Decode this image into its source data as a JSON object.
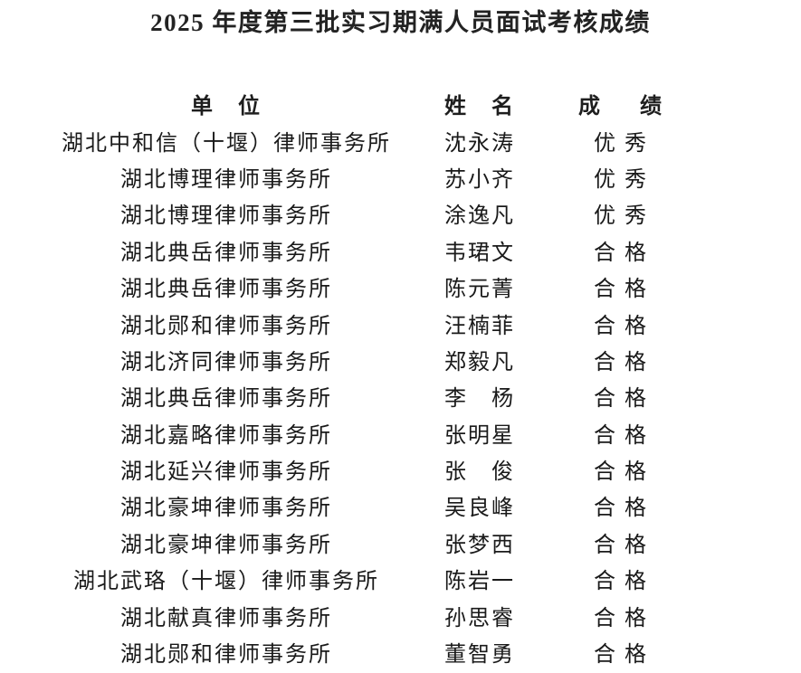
{
  "title": "2025 年度第三批实习期满人员面试考核成绩",
  "table": {
    "headers": {
      "unit": "单　位",
      "name": "姓　名",
      "score": "成　绩"
    },
    "rows": [
      {
        "unit": "湖北中和信（十堰）律师事务所",
        "name": "沈永涛",
        "score": "优秀"
      },
      {
        "unit": "湖北博理律师事务所",
        "name": "苏小齐",
        "score": "优秀"
      },
      {
        "unit": "湖北博理律师事务所",
        "name": "涂逸凡",
        "score": "优秀"
      },
      {
        "unit": "湖北典岳律师事务所",
        "name": "韦珺文",
        "score": "合格"
      },
      {
        "unit": "湖北典岳律师事务所",
        "name": "陈元菁",
        "score": "合格"
      },
      {
        "unit": "湖北郧和律师事务所",
        "name": "汪楠菲",
        "score": "合格"
      },
      {
        "unit": "湖北济同律师事务所",
        "name": "郑毅凡",
        "score": "合格"
      },
      {
        "unit": "湖北典岳律师事务所",
        "name": "李　杨",
        "score": "合格"
      },
      {
        "unit": "湖北嘉略律师事务所",
        "name": "张明星",
        "score": "合格"
      },
      {
        "unit": "湖北延兴律师事务所",
        "name": "张　俊",
        "score": "合格"
      },
      {
        "unit": "湖北豪坤律师事务所",
        "name": "吴良峰",
        "score": "合格"
      },
      {
        "unit": "湖北豪坤律师事务所",
        "name": "张梦西",
        "score": "合格"
      },
      {
        "unit": "湖北武珞（十堰）律师事务所",
        "name": "陈岩一",
        "score": "合格"
      },
      {
        "unit": "湖北献真律师事务所",
        "name": "孙思睿",
        "score": "合格"
      },
      {
        "unit": "湖北郧和律师事务所",
        "name": "董智勇",
        "score": "合格"
      }
    ]
  },
  "colors": {
    "text": "#1a1a1a",
    "title_text": "#232323",
    "background": "#ffffff"
  }
}
